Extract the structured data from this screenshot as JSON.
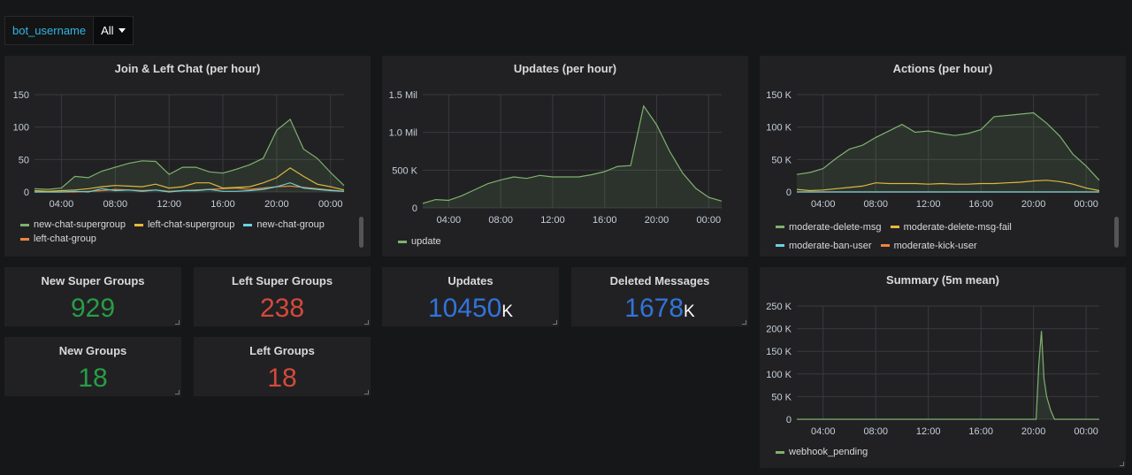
{
  "variable": {
    "label": "bot_username",
    "value": "All"
  },
  "colors": {
    "green": "#7eb26d",
    "yellow": "#eab839",
    "cyan": "#6ed0e0",
    "orange": "#ef843c",
    "stat_green": "#299c46",
    "stat_red": "#d44a3a",
    "stat_blue": "#3274d9"
  },
  "panels": {
    "join_left": {
      "title": "Join & Left Chat (per hour)",
      "legend": [
        {
          "name": "new-chat-supergroup",
          "color": "#7eb26d"
        },
        {
          "name": "left-chat-supergroup",
          "color": "#eab839"
        },
        {
          "name": "new-chat-group",
          "color": "#6ed0e0"
        },
        {
          "name": "left-chat-group",
          "color": "#ef843c"
        }
      ]
    },
    "updates": {
      "title": "Updates (per hour)",
      "legend": [
        {
          "name": "update",
          "color": "#7eb26d"
        }
      ]
    },
    "actions": {
      "title": "Actions (per hour)",
      "legend": [
        {
          "name": "moderate-delete-msg",
          "color": "#7eb26d"
        },
        {
          "name": "moderate-delete-msg-fail",
          "color": "#eab839"
        },
        {
          "name": "moderate-ban-user",
          "color": "#6ed0e0"
        },
        {
          "name": "moderate-kick-user",
          "color": "#ef843c"
        }
      ]
    },
    "summary": {
      "title": "Summary (5m mean)",
      "legend": [
        {
          "name": "webhook_pending",
          "color": "#7eb26d"
        }
      ]
    }
  },
  "stats": {
    "new_super_groups": {
      "title": "New Super Groups",
      "value": "929",
      "suffix": ""
    },
    "left_super_groups": {
      "title": "Left Super Groups",
      "value": "238",
      "suffix": ""
    },
    "updates": {
      "title": "Updates",
      "value": "10450",
      "suffix": "K"
    },
    "deleted_messages": {
      "title": "Deleted Messages",
      "value": "1678",
      "suffix": "K"
    },
    "new_groups": {
      "title": "New Groups",
      "value": "18",
      "suffix": ""
    },
    "left_groups": {
      "title": "Left Groups",
      "value": "18",
      "suffix": ""
    }
  },
  "chart_data": [
    {
      "type": "line",
      "title": "Join & Left Chat (per hour)",
      "x": [
        "02:00",
        "03:00",
        "04:00",
        "05:00",
        "06:00",
        "07:00",
        "08:00",
        "09:00",
        "10:00",
        "11:00",
        "12:00",
        "13:00",
        "14:00",
        "15:00",
        "16:00",
        "17:00",
        "18:00",
        "19:00",
        "20:00",
        "21:00",
        "22:00",
        "23:00",
        "00:00",
        "01:00"
      ],
      "x_ticks": [
        "04:00",
        "08:00",
        "12:00",
        "16:00",
        "20:00",
        "00:00"
      ],
      "y_ticks": [
        "0",
        "50",
        "100",
        "150"
      ],
      "ylim": [
        0,
        150
      ],
      "series": [
        {
          "name": "new-chat-supergroup",
          "values": [
            5,
            4,
            6,
            24,
            22,
            32,
            38,
            44,
            48,
            47,
            27,
            38,
            38,
            31,
            29,
            35,
            42,
            52,
            95,
            112,
            66,
            52,
            30,
            10
          ],
          "fill": true
        },
        {
          "name": "left-chat-supergroup",
          "values": [
            2,
            1,
            2,
            3,
            5,
            8,
            10,
            9,
            8,
            12,
            6,
            8,
            14,
            14,
            6,
            7,
            8,
            14,
            22,
            37,
            24,
            12,
            8,
            3
          ]
        },
        {
          "name": "new-chat-group",
          "values": [
            0,
            0,
            0,
            1,
            0,
            5,
            2,
            3,
            1,
            3,
            0,
            2,
            2,
            4,
            1,
            1,
            2,
            4,
            8,
            14,
            6,
            4,
            2,
            1
          ]
        },
        {
          "name": "left-chat-group",
          "values": [
            0,
            0,
            0,
            0,
            1,
            2,
            4,
            3,
            2,
            3,
            1,
            2,
            3,
            4,
            5,
            6,
            4,
            6,
            8,
            9,
            7,
            5,
            3,
            1
          ]
        }
      ]
    },
    {
      "type": "line",
      "title": "Updates (per hour)",
      "x": [
        "02:00",
        "03:00",
        "04:00",
        "05:00",
        "06:00",
        "07:00",
        "08:00",
        "09:00",
        "10:00",
        "11:00",
        "12:00",
        "13:00",
        "14:00",
        "15:00",
        "16:00",
        "17:00",
        "18:00",
        "19:00",
        "20:00",
        "21:00",
        "22:00",
        "23:00",
        "00:00",
        "01:00"
      ],
      "x_ticks": [
        "04:00",
        "08:00",
        "12:00",
        "16:00",
        "20:00",
        "00:00"
      ],
      "y_ticks": [
        "0",
        "500 K",
        "1.0 Mil",
        "1.5 Mil"
      ],
      "ylim": [
        0,
        1500000
      ],
      "series": [
        {
          "name": "update",
          "values": [
            60000,
            110000,
            100000,
            160000,
            240000,
            320000,
            370000,
            410000,
            390000,
            430000,
            410000,
            410000,
            410000,
            440000,
            480000,
            550000,
            560000,
            1350000,
            1100000,
            750000,
            460000,
            260000,
            140000,
            90000
          ],
          "fill": true
        }
      ]
    },
    {
      "type": "line",
      "title": "Actions (per hour)",
      "x": [
        "02:00",
        "03:00",
        "04:00",
        "05:00",
        "06:00",
        "07:00",
        "08:00",
        "09:00",
        "10:00",
        "11:00",
        "12:00",
        "13:00",
        "14:00",
        "15:00",
        "16:00",
        "17:00",
        "18:00",
        "19:00",
        "20:00",
        "21:00",
        "22:00",
        "23:00",
        "00:00",
        "01:00"
      ],
      "x_ticks": [
        "04:00",
        "08:00",
        "12:00",
        "16:00",
        "20:00",
        "00:00"
      ],
      "y_ticks": [
        "0",
        "50 K",
        "100 K",
        "150 K"
      ],
      "ylim": [
        0,
        150000
      ],
      "series": [
        {
          "name": "moderate-delete-msg",
          "values": [
            27000,
            30000,
            36000,
            52000,
            66000,
            72000,
            84000,
            94000,
            104000,
            92000,
            94000,
            90000,
            87000,
            90000,
            96000,
            116000,
            118000,
            120000,
            122000,
            106000,
            86000,
            58000,
            40000,
            18000
          ],
          "fill": true
        },
        {
          "name": "moderate-delete-msg-fail",
          "values": [
            4000,
            2000,
            3000,
            5000,
            7000,
            9000,
            14000,
            13000,
            13000,
            13000,
            12000,
            13000,
            12000,
            12000,
            13000,
            13000,
            14000,
            15000,
            17000,
            18000,
            16000,
            12000,
            6000,
            2000
          ]
        },
        {
          "name": "moderate-ban-user",
          "values": [
            0,
            0,
            0,
            0,
            0,
            0,
            0,
            0,
            0,
            0,
            0,
            0,
            0,
            0,
            0,
            0,
            0,
            0,
            0,
            0,
            0,
            0,
            0,
            0
          ]
        },
        {
          "name": "moderate-kick-user",
          "values": [
            0,
            0,
            0,
            0,
            0,
            0,
            0,
            0,
            0,
            0,
            0,
            0,
            0,
            0,
            0,
            0,
            0,
            0,
            0,
            0,
            0,
            0,
            0,
            0
          ]
        }
      ]
    },
    {
      "type": "line",
      "title": "Summary (5m mean)",
      "x_ticks": [
        "04:00",
        "08:00",
        "12:00",
        "16:00",
        "20:00",
        "00:00"
      ],
      "y_ticks": [
        "0",
        "50 K",
        "100 K",
        "150 K",
        "200 K",
        "250 K"
      ],
      "ylim": [
        0,
        250000
      ],
      "x_hours": [
        2.0,
        20.2,
        20.4,
        20.6,
        20.8,
        21.0,
        21.3,
        21.6,
        22.0,
        25.0
      ],
      "series": [
        {
          "name": "webhook_pending",
          "values": [
            0,
            0,
            120000,
            195000,
            90000,
            50000,
            20000,
            0,
            0,
            0
          ],
          "fill": true
        }
      ]
    }
  ]
}
